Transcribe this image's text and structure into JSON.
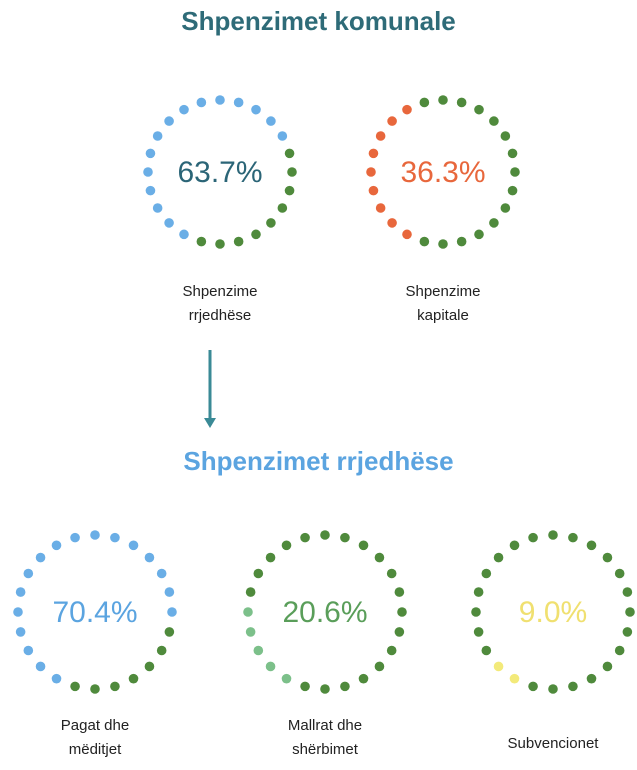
{
  "chart_data": [
    {
      "type": "dot-ring",
      "title": "Shpenzimet komunale",
      "categories": [
        "Shpenzime rrjedhëse",
        "Shpenzime kapitale"
      ],
      "values": [
        63.7,
        36.3
      ],
      "value_labels": [
        "63.7%",
        "36.3%"
      ],
      "colors": [
        "#6aaee6",
        "#e8673c"
      ],
      "text_colors": [
        "#2b6577",
        "#e8673c"
      ],
      "track_color": "#4f8a3c",
      "title_color": "#2e6b78"
    },
    {
      "type": "dot-ring",
      "title": "Shpenzimet rrjedhëse",
      "categories": [
        "Pagat dhe mëditjet",
        "Mallrat dhe shërbimet",
        "Subvencionet"
      ],
      "values": [
        70.4,
        20.6,
        9.0
      ],
      "value_labels": [
        "70.4%",
        "20.6%",
        "9.0%"
      ],
      "colors": [
        "#6aaee6",
        "#7cc08a",
        "#f3ea7a"
      ],
      "text_colors": [
        "#5ba4e0",
        "#5a9e5a",
        "#f0e070"
      ],
      "track_color": "#4f8a3c",
      "title_color": "#5ba4e0"
    }
  ]
}
